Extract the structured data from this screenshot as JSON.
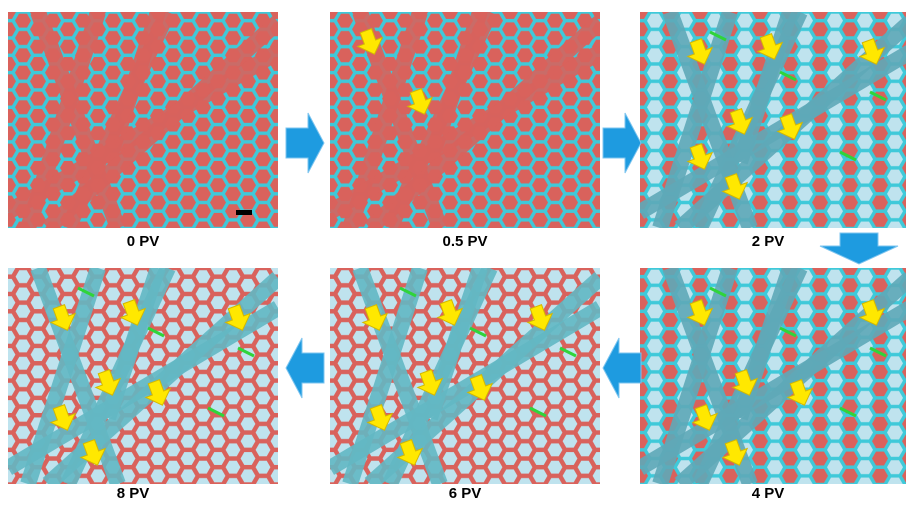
{
  "panels": [
    {
      "label": "0 PV"
    },
    {
      "label": "0.5 PV"
    },
    {
      "label": "2 PV"
    },
    {
      "label": "4 PV"
    },
    {
      "label": "6 PV"
    },
    {
      "label": "8 PV"
    }
  ]
}
